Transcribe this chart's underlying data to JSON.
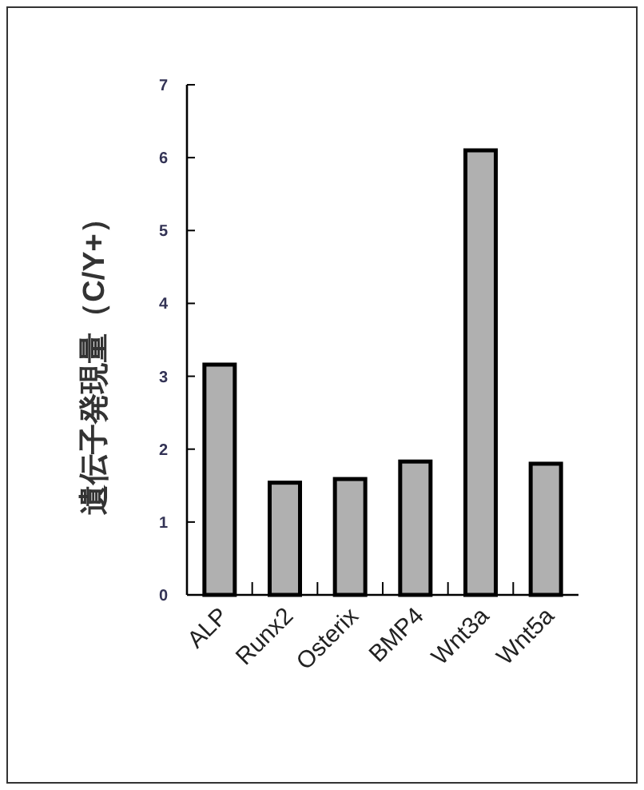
{
  "chart_data": {
    "type": "bar",
    "ylabel": "遺伝子発現量（C/Y+）",
    "categories": [
      "ALP",
      "Runx2",
      "Osterix",
      "BMP4",
      "Wnt3a",
      "Wnt5a"
    ],
    "values": [
      3.16,
      1.54,
      1.59,
      1.83,
      6.1,
      1.8
    ],
    "color": "#b0b0b0",
    "ylim": [
      0,
      7
    ],
    "yticks": [
      0,
      1,
      2,
      3,
      4,
      5,
      6,
      7
    ],
    "grid": false
  }
}
